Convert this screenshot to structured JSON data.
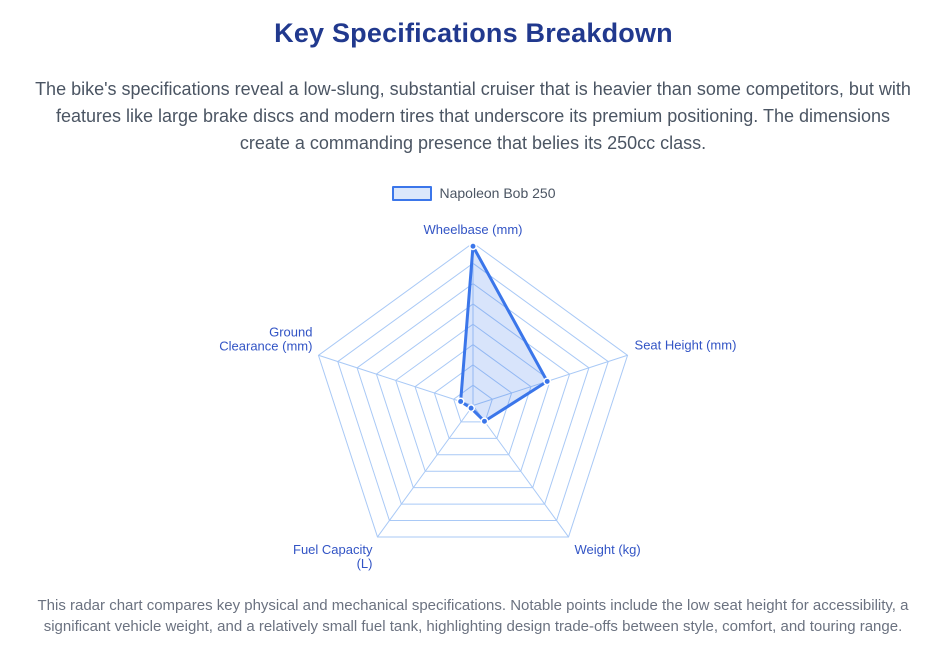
{
  "page": {
    "title": "Key Specifications Breakdown",
    "subtitle": "The bike's specifications reveal a low-slung, substantial cruiser that is heavier than some competitors, but with features like large brake discs and modern tires that underscore its premium positioning. The dimensions create a commanding presence that belies its 250cc class.",
    "caption": "This radar chart compares key physical and mechanical specifications. Notable points include the low seat height for accessibility, a significant vehicle weight, and a relatively small fuel tank, highlighting design trade-offs between style, comfort, and touring range."
  },
  "legend": {
    "series_label": "Napoleon Bob 250"
  },
  "chart_data": {
    "type": "radar",
    "title": "Key Specifications Breakdown",
    "legend_position": "top",
    "radial_tick_labels": "none",
    "grid": {
      "shape": "pentagon",
      "rings": 8,
      "grid_on": true
    },
    "axes": [
      {
        "label": "Wheelbase (mm)",
        "lines": [
          "Wheelbase (mm)"
        ],
        "anchor": "middle"
      },
      {
        "label": "Seat Height (mm)",
        "lines": [
          "Seat Height (mm)"
        ],
        "anchor": "start"
      },
      {
        "label": "Weight (kg)",
        "lines": [
          "Weight (kg)"
        ],
        "anchor": "start"
      },
      {
        "label": "Fuel Capacity (L)",
        "lines": [
          "Fuel Capacity",
          "(L)"
        ],
        "anchor": "end"
      },
      {
        "label": "Ground Clearance (mm)",
        "lines": [
          "Ground",
          "Clearance (mm)"
        ],
        "anchor": "end"
      }
    ],
    "series": [
      {
        "name": "Napoleon Bob 250",
        "values_fraction_of_max": [
          0.98,
          0.48,
          0.12,
          0.02,
          0.08
        ]
      }
    ],
    "colors": {
      "series_stroke": "#3b76ea",
      "series_fill": "rgba(59,118,234,0.2)",
      "grid_line": "#a9c9f6",
      "axis_label": "#3254c5",
      "title": "#21398e",
      "body_text": "#4b5563",
      "caption_text": "#6b7280",
      "legend_swatch_fill": "#dbe7fb",
      "dot_border": "#ffffff"
    }
  }
}
